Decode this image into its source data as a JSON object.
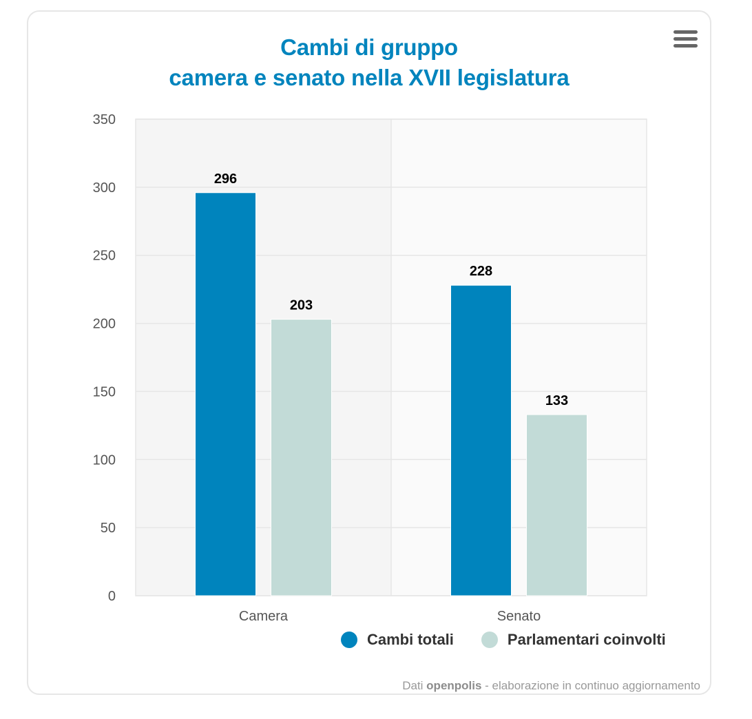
{
  "menu": {
    "icon": "hamburger-menu-icon"
  },
  "chart_data": {
    "type": "bar",
    "title": "Cambi di gruppo",
    "subtitle": "camera e senato nella XVII legislatura",
    "categories": [
      "Camera",
      "Senato"
    ],
    "series": [
      {
        "name": "Cambi totali",
        "values": [
          296,
          228
        ],
        "color": "#0084bd"
      },
      {
        "name": "Parlamentari coinvolti",
        "values": [
          203,
          133
        ],
        "color": "#c2dbd7"
      }
    ],
    "ylim": [
      0,
      350
    ],
    "yticks": [
      "0",
      "50",
      "100",
      "150",
      "200",
      "250",
      "300",
      "350"
    ],
    "grid": true,
    "legend": "bottom-right",
    "data_labels": true
  },
  "credit": {
    "prefix": "Dati ",
    "source": "openpolis",
    "suffix": " - elaborazione in continuo aggiornamento"
  }
}
